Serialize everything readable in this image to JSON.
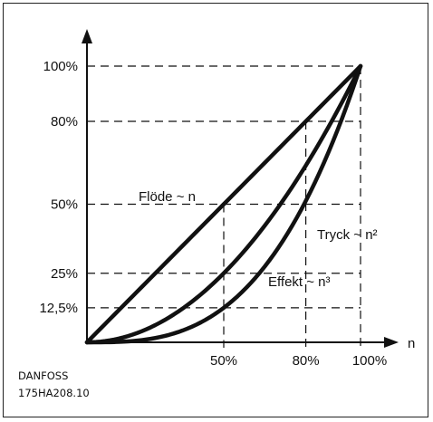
{
  "chart_data": {
    "type": "line",
    "xlabel": "n",
    "ylabel": "",
    "xlim": [
      0,
      100
    ],
    "ylim": [
      0,
      100
    ],
    "x_ticks": [
      {
        "value": 50,
        "label": "50%"
      },
      {
        "value": 80,
        "label": "80%"
      },
      {
        "value": 100,
        "label": "100%"
      }
    ],
    "y_ticks": [
      {
        "value": 100,
        "label": "100%"
      },
      {
        "value": 80,
        "label": "80%"
      },
      {
        "value": 50,
        "label": "50%"
      },
      {
        "value": 25,
        "label": "25%"
      },
      {
        "value": 12.5,
        "label": "12,5%"
      }
    ],
    "series": [
      {
        "name": "Flöde ~ n",
        "exponent": 1,
        "x": [
          0,
          50,
          80,
          100
        ],
        "y": [
          0,
          50,
          80,
          100
        ]
      },
      {
        "name": "Tryck ~ n²",
        "exponent": 2,
        "x": [
          0,
          50,
          80,
          100
        ],
        "y": [
          0,
          25,
          64,
          100
        ]
      },
      {
        "name": "Effekt ~ n³",
        "exponent": 3,
        "x": [
          0,
          50,
          80,
          100
        ],
        "y": [
          0,
          12.5,
          51.2,
          100
        ]
      }
    ],
    "grid": "dashed reference lines",
    "legend": "inline labels"
  },
  "footer": {
    "brand": "DANFOSS",
    "code": "175HA208.10"
  },
  "colors": {
    "ink": "#111111",
    "background": "#ffffff"
  }
}
